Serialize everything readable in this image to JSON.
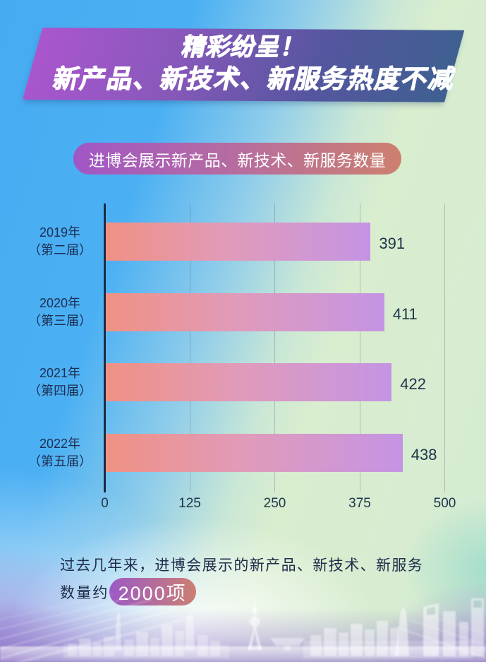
{
  "banner": {
    "line1": "精彩纷呈！",
    "line2": "新产品、新技术、新服务热度不减"
  },
  "subtitle_pill": "进博会展示新产品、新技术、新服务数量",
  "chart_data": {
    "type": "bar",
    "orientation": "horizontal",
    "title": "进博会展示新产品、新技术、新服务数量",
    "categories": [
      "2019年（第二届）",
      "2020年（第三届）",
      "2021年（第四届）",
      "2022年（第五届）"
    ],
    "category_lines": [
      [
        "2019年",
        "（第二届）"
      ],
      [
        "2020年",
        "（第三届）"
      ],
      [
        "2021年",
        "（第四届）"
      ],
      [
        "2022年",
        "（第五届）"
      ]
    ],
    "values": [
      391,
      411,
      422,
      438
    ],
    "xlim": [
      0,
      500
    ],
    "x_ticks": [
      0,
      125,
      250,
      375,
      500
    ],
    "grid": true,
    "legend": false,
    "bar_gradient": [
      "#f09184",
      "#c494e4"
    ]
  },
  "footer": {
    "line1": "过去几年来，进博会展示的新产品、新技术、新服务",
    "line2_prefix": "数量约",
    "badge": "2000项"
  },
  "colors": {
    "banner_gradient": [
      "#a757cb",
      "#3d6090"
    ],
    "pill_gradient": [
      "#a056c5",
      "#cd806e"
    ],
    "bar_gradient": [
      "#f09184",
      "#c494e4"
    ],
    "background_blue": "#47abf2",
    "background_green": "#d9edcf",
    "background_lavender": "#947dce",
    "text_dark": "#1d2e52",
    "text_white": "#ffffff"
  }
}
